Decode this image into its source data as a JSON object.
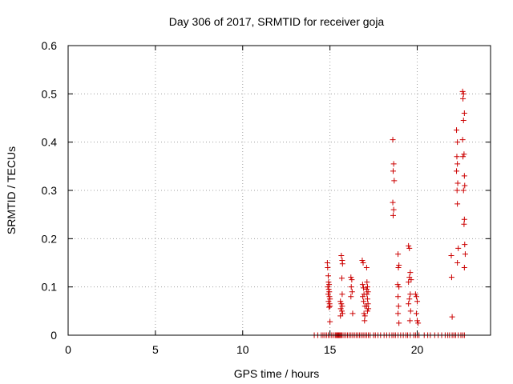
{
  "colors": {
    "points": "#cc0000",
    "grid": "#a0a0a0",
    "axes": "#000000"
  },
  "chart_data": {
    "type": "scatter",
    "title": "Day 306 of 2017, SRMTID for receiver goja",
    "xlabel": "GPS time / hours",
    "ylabel": "SRMTID / TECUs",
    "xlim": [
      0,
      24.2
    ],
    "ylim": [
      0,
      0.6
    ],
    "xticks": [
      0,
      5,
      10,
      15,
      20
    ],
    "yticks": [
      0,
      0.1,
      0.2,
      0.3,
      0.4,
      0.5,
      0.6
    ],
    "xtick_labels": [
      "0",
      "5",
      "10",
      "15",
      "20"
    ],
    "ytick_labels": [
      "0",
      "0.1",
      "0.2",
      "0.3",
      "0.4",
      "0.5",
      "0.6"
    ],
    "grid": true,
    "marker": "+",
    "series": [
      {
        "name": "SRMTID",
        "points": [
          [
            14.85,
            0.15
          ],
          [
            14.87,
            0.14
          ],
          [
            14.9,
            0.123
          ],
          [
            14.92,
            0.11
          ],
          [
            14.95,
            0.105
          ],
          [
            14.88,
            0.1
          ],
          [
            14.93,
            0.095
          ],
          [
            14.96,
            0.09
          ],
          [
            14.9,
            0.085
          ],
          [
            14.97,
            0.08
          ],
          [
            15.0,
            0.075
          ],
          [
            14.92,
            0.07
          ],
          [
            14.98,
            0.065
          ],
          [
            15.0,
            0.06
          ],
          [
            14.95,
            0.058
          ],
          [
            15.0,
            0.028
          ],
          [
            15.65,
            0.165
          ],
          [
            15.7,
            0.155
          ],
          [
            15.72,
            0.148
          ],
          [
            15.68,
            0.118
          ],
          [
            15.7,
            0.085
          ],
          [
            15.6,
            0.07
          ],
          [
            15.65,
            0.065
          ],
          [
            15.7,
            0.06
          ],
          [
            15.62,
            0.055
          ],
          [
            15.68,
            0.05
          ],
          [
            15.72,
            0.045
          ],
          [
            15.6,
            0.04
          ],
          [
            16.2,
            0.12
          ],
          [
            16.25,
            0.115
          ],
          [
            16.22,
            0.1
          ],
          [
            16.27,
            0.09
          ],
          [
            16.2,
            0.08
          ],
          [
            16.3,
            0.045
          ],
          [
            16.85,
            0.155
          ],
          [
            16.9,
            0.15
          ],
          [
            16.87,
            0.105
          ],
          [
            16.92,
            0.098
          ],
          [
            16.95,
            0.085
          ],
          [
            16.88,
            0.08
          ],
          [
            16.93,
            0.07
          ],
          [
            17.0,
            0.06
          ],
          [
            16.95,
            0.045
          ],
          [
            17.0,
            0.04
          ],
          [
            16.98,
            0.03
          ],
          [
            17.1,
            0.14
          ],
          [
            17.12,
            0.11
          ],
          [
            17.15,
            0.1
          ],
          [
            17.1,
            0.095
          ],
          [
            17.18,
            0.09
          ],
          [
            17.12,
            0.085
          ],
          [
            17.15,
            0.075
          ],
          [
            17.18,
            0.065
          ],
          [
            17.1,
            0.06
          ],
          [
            17.2,
            0.055
          ],
          [
            17.15,
            0.05
          ],
          [
            18.6,
            0.405
          ],
          [
            18.65,
            0.355
          ],
          [
            18.62,
            0.34
          ],
          [
            18.68,
            0.32
          ],
          [
            18.6,
            0.275
          ],
          [
            18.65,
            0.26
          ],
          [
            18.62,
            0.248
          ],
          [
            18.9,
            0.168
          ],
          [
            18.95,
            0.145
          ],
          [
            18.92,
            0.14
          ],
          [
            18.88,
            0.105
          ],
          [
            18.95,
            0.1
          ],
          [
            18.9,
            0.08
          ],
          [
            18.93,
            0.06
          ],
          [
            18.9,
            0.045
          ],
          [
            18.95,
            0.025
          ],
          [
            19.5,
            0.185
          ],
          [
            19.55,
            0.18
          ],
          [
            19.6,
            0.13
          ],
          [
            19.55,
            0.12
          ],
          [
            19.65,
            0.115
          ],
          [
            19.5,
            0.11
          ],
          [
            19.6,
            0.085
          ],
          [
            19.55,
            0.075
          ],
          [
            19.5,
            0.065
          ],
          [
            19.62,
            0.05
          ],
          [
            19.58,
            0.03
          ],
          [
            19.9,
            0.085
          ],
          [
            19.95,
            0.08
          ],
          [
            20.0,
            0.07
          ],
          [
            19.95,
            0.045
          ],
          [
            20.0,
            0.03
          ],
          [
            20.05,
            0.025
          ],
          [
            21.95,
            0.165
          ],
          [
            21.97,
            0.12
          ],
          [
            22.0,
            0.038
          ],
          [
            22.25,
            0.425
          ],
          [
            22.3,
            0.4
          ],
          [
            22.27,
            0.37
          ],
          [
            22.3,
            0.355
          ],
          [
            22.25,
            0.34
          ],
          [
            22.32,
            0.315
          ],
          [
            22.28,
            0.3
          ],
          [
            22.3,
            0.272
          ],
          [
            22.35,
            0.18
          ],
          [
            22.3,
            0.15
          ],
          [
            22.6,
            0.505
          ],
          [
            22.65,
            0.5
          ],
          [
            22.62,
            0.49
          ],
          [
            22.7,
            0.46
          ],
          [
            22.65,
            0.445
          ],
          [
            22.6,
            0.405
          ],
          [
            22.68,
            0.375
          ],
          [
            22.62,
            0.37
          ],
          [
            22.7,
            0.33
          ],
          [
            22.72,
            0.31
          ],
          [
            22.65,
            0.3
          ],
          [
            22.7,
            0.24
          ],
          [
            22.68,
            0.23
          ],
          [
            22.72,
            0.188
          ],
          [
            22.75,
            0.168
          ],
          [
            22.7,
            0.14
          ],
          [
            14.1,
            0
          ],
          [
            14.3,
            0
          ],
          [
            14.5,
            0
          ],
          [
            14.6,
            0
          ],
          [
            14.7,
            0
          ],
          [
            14.8,
            0
          ],
          [
            14.9,
            0
          ],
          [
            15.0,
            0
          ],
          [
            15.1,
            0
          ],
          [
            15.2,
            0
          ],
          [
            15.3,
            0
          ],
          [
            15.35,
            0
          ],
          [
            15.4,
            0
          ],
          [
            15.45,
            0
          ],
          [
            15.5,
            0
          ],
          [
            15.55,
            0
          ],
          [
            15.6,
            0
          ],
          [
            15.65,
            0
          ],
          [
            15.7,
            0
          ],
          [
            15.8,
            0
          ],
          [
            15.9,
            0
          ],
          [
            16.0,
            0
          ],
          [
            16.1,
            0
          ],
          [
            16.2,
            0
          ],
          [
            16.3,
            0
          ],
          [
            16.4,
            0
          ],
          [
            16.5,
            0
          ],
          [
            16.6,
            0
          ],
          [
            16.7,
            0
          ],
          [
            16.8,
            0
          ],
          [
            16.9,
            0
          ],
          [
            17.0,
            0
          ],
          [
            17.1,
            0
          ],
          [
            17.2,
            0
          ],
          [
            17.3,
            0
          ],
          [
            17.5,
            0
          ],
          [
            17.6,
            0
          ],
          [
            17.75,
            0
          ],
          [
            17.9,
            0
          ],
          [
            18.1,
            0
          ],
          [
            18.25,
            0
          ],
          [
            18.4,
            0
          ],
          [
            18.55,
            0
          ],
          [
            18.65,
            0
          ],
          [
            18.75,
            0
          ],
          [
            18.9,
            0
          ],
          [
            19.05,
            0
          ],
          [
            19.2,
            0
          ],
          [
            19.35,
            0
          ],
          [
            19.45,
            0
          ],
          [
            19.6,
            0
          ],
          [
            19.8,
            0
          ],
          [
            19.9,
            0
          ],
          [
            20.0,
            0
          ],
          [
            20.1,
            0
          ],
          [
            20.4,
            0
          ],
          [
            20.6,
            0
          ],
          [
            20.75,
            0
          ],
          [
            21.0,
            0
          ],
          [
            21.2,
            0
          ],
          [
            21.4,
            0
          ],
          [
            21.6,
            0
          ],
          [
            21.75,
            0
          ],
          [
            21.85,
            0
          ],
          [
            22.0,
            0
          ],
          [
            22.1,
            0
          ],
          [
            22.2,
            0
          ],
          [
            22.35,
            0
          ],
          [
            22.5,
            0
          ],
          [
            22.6,
            0
          ],
          [
            22.7,
            0
          ]
        ]
      }
    ]
  }
}
